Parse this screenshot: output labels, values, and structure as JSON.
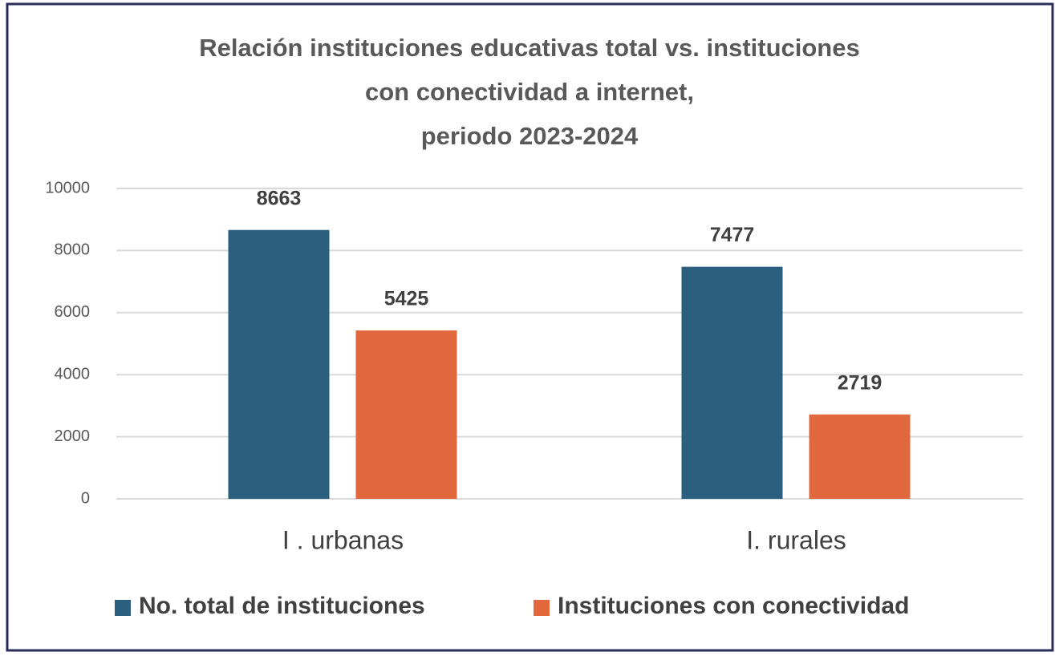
{
  "chart_data": {
    "type": "bar",
    "title": [
      "Relación instituciones educativas total vs. instituciones",
      "con conectividad a internet,",
      "periodo 2023-2024"
    ],
    "categories": [
      "I . urbanas",
      "I. rurales"
    ],
    "series": [
      {
        "name": "No. total de instituciones",
        "color": "#2a5f7f",
        "values": [
          8663,
          7477
        ]
      },
      {
        "name": "Instituciones con conectividad",
        "color": "#e0683c",
        "values": [
          5425,
          2719
        ]
      }
    ],
    "ylim": [
      0,
      10000
    ],
    "yticks": [
      0,
      2000,
      4000,
      6000,
      8000,
      10000
    ],
    "grid": true,
    "legend": "bottom"
  }
}
